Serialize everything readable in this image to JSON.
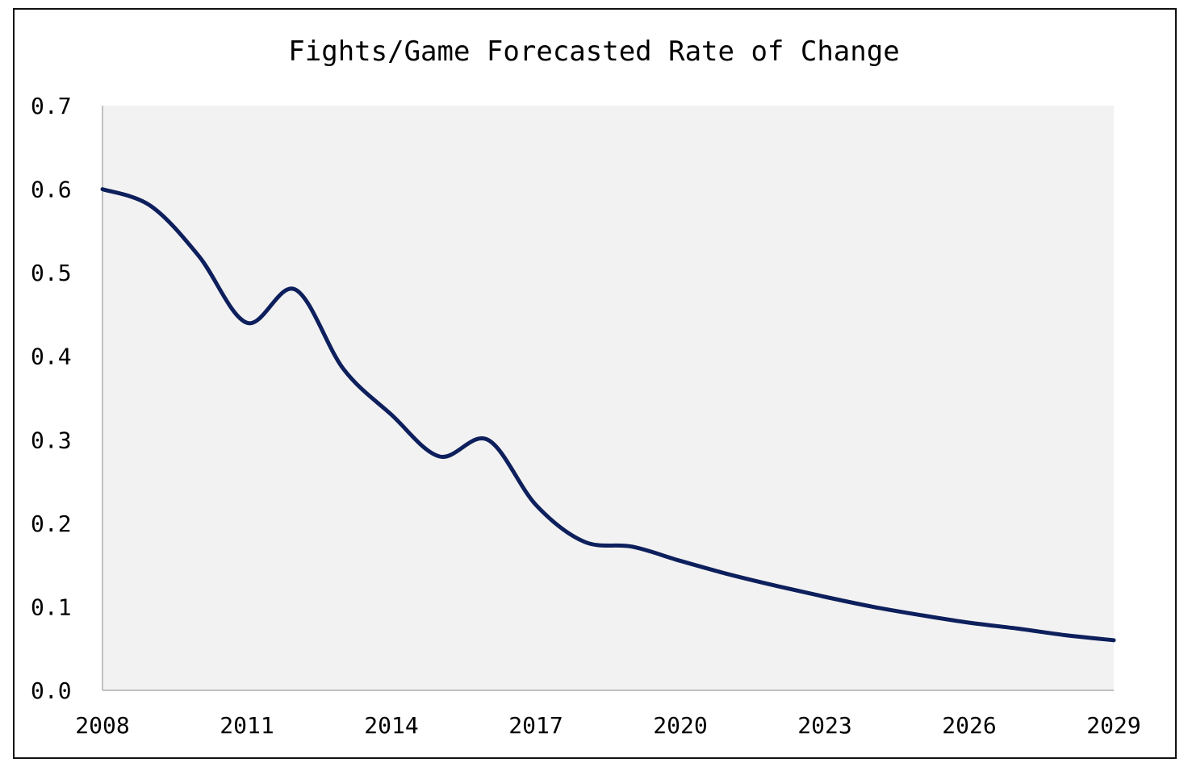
{
  "chart_data": {
    "type": "line",
    "title": "Fights/Game Forecasted Rate of Change",
    "xlabel": "",
    "ylabel": "",
    "x": [
      2008,
      2009,
      2010,
      2011,
      2012,
      2013,
      2014,
      2015,
      2016,
      2017,
      2018,
      2019,
      2020,
      2021,
      2022,
      2023,
      2024,
      2025,
      2026,
      2027,
      2028,
      2029
    ],
    "series": [
      {
        "values": [
          0.6,
          0.58,
          0.52,
          0.44,
          0.48,
          0.385,
          0.33,
          0.28,
          0.3,
          0.222,
          0.178,
          0.172,
          0.155,
          0.139,
          0.125,
          0.112,
          0.1,
          0.09,
          0.081,
          0.074,
          0.066,
          0.06
        ],
        "color": "#0d1f5c"
      }
    ],
    "xlim": [
      2008,
      2029
    ],
    "ylim": [
      0.0,
      0.7
    ],
    "xticks": [
      "2008",
      "2011",
      "2014",
      "2017",
      "2020",
      "2023",
      "2026",
      "2029"
    ],
    "yticks": [
      "0.0",
      "0.1",
      "0.2",
      "0.3",
      "0.4",
      "0.5",
      "0.6",
      "0.7"
    ],
    "grid": false,
    "legend": "none",
    "plot_background": "#f2f2f2",
    "axis_color": "#c0c0c0"
  }
}
